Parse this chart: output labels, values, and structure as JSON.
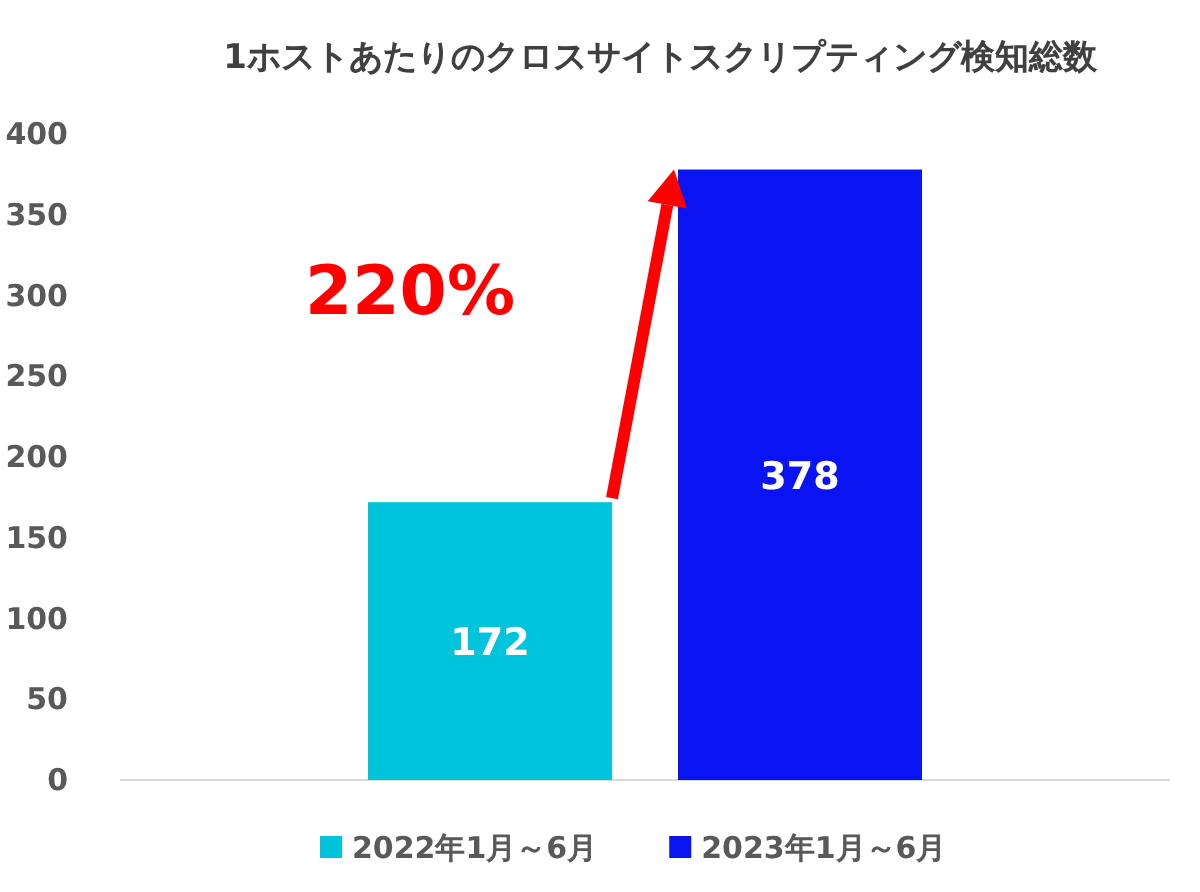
{
  "chart_data": {
    "type": "bar",
    "title": "1ホストあたりのクロスサイトスクリプティング検知総数",
    "categories": [
      null
    ],
    "series": [
      {
        "name": "2022年1月～6月",
        "color": "#00c4dc",
        "values": [
          172
        ]
      },
      {
        "name": "2023年1月～6月",
        "color": "#0a14f0",
        "values": [
          378
        ]
      }
    ],
    "ylim": [
      0,
      400
    ],
    "yticks": [
      0,
      50,
      100,
      150,
      200,
      250,
      300,
      350,
      400
    ],
    "data_labels": true,
    "legend": "bottom",
    "grid": false,
    "annotations": [
      "220%"
    ]
  }
}
